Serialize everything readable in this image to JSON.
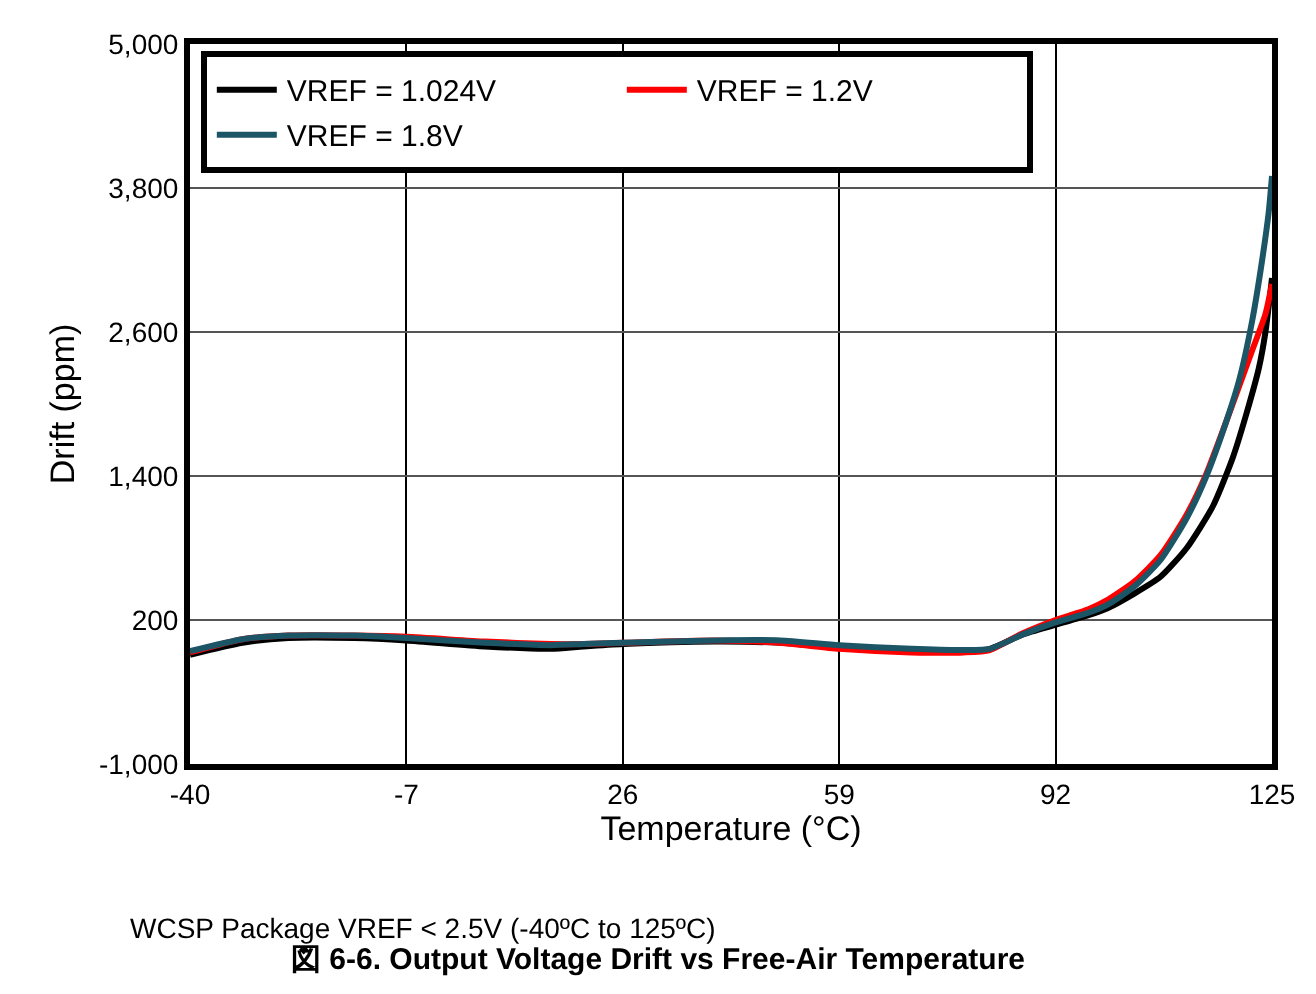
{
  "chart_data": {
    "type": "line",
    "title": "図 6-6. Output Voltage Drift vs Free-Air Temperature",
    "xlabel": "Temperature (°C)",
    "ylabel": "Drift (ppm)",
    "annotations": [
      "WCSP Package VREF < 2.5V (-40ºC to 125ºC)"
    ],
    "xlim": [
      -40,
      125
    ],
    "xticks": [
      -40,
      -7,
      26,
      59,
      92,
      125
    ],
    "ylim": [
      -1000,
      5000
    ],
    "yticks": [
      {
        "value": -1000,
        "label": "-1,000"
      },
      200,
      {
        "value": 1400,
        "label": "1,400"
      },
      {
        "value": 2600,
        "label": "2,600"
      },
      {
        "value": 3800,
        "label": "3,800"
      },
      {
        "value": 5000,
        "label": "5,000"
      }
    ],
    "grid": true,
    "legend": "top left",
    "line_style": "solid",
    "marker": "none",
    "series": [
      {
        "name": "VREF = 1.024V",
        "color": "#000000",
        "x": [
          -40,
          -32,
          -25,
          -15,
          -7,
          5,
          15,
          20,
          26,
          40,
          50,
          59,
          70,
          78,
          82,
          87,
          92,
          97,
          100,
          104,
          108,
          112,
          116,
          119,
          121,
          123,
          124,
          125
        ],
        "values": [
          -90,
          10,
          50,
          50,
          30,
          -20,
          -40,
          -20,
          0,
          20,
          10,
          -30,
          -60,
          -60,
          -40,
          80,
          160,
          240,
          300,
          420,
          560,
          800,
          1150,
          1550,
          1900,
          2300,
          2600,
          3050
        ]
      },
      {
        "name": "VREF = 1.2V",
        "color": "#ff0000",
        "x": [
          -40,
          -32,
          -25,
          -15,
          -7,
          5,
          15,
          20,
          26,
          40,
          50,
          59,
          70,
          78,
          82,
          87,
          92,
          97,
          100,
          104,
          108,
          112,
          115,
          118,
          120,
          122,
          124,
          125
        ],
        "values": [
          -70,
          40,
          70,
          70,
          60,
          20,
          0,
          0,
          10,
          30,
          10,
          -40,
          -70,
          -70,
          -50,
          90,
          200,
          290,
          370,
          520,
          740,
          1080,
          1420,
          1850,
          2150,
          2450,
          2750,
          3000
        ]
      },
      {
        "name": "VREF = 1.8V",
        "color": "#1b5566",
        "x": [
          -40,
          -32,
          -25,
          -15,
          -7,
          5,
          15,
          20,
          26,
          40,
          50,
          59,
          70,
          78,
          82,
          87,
          92,
          97,
          100,
          104,
          108,
          112,
          115,
          118,
          120,
          122,
          123.5,
          124.5,
          125
        ],
        "values": [
          -60,
          40,
          70,
          70,
          50,
          10,
          -10,
          0,
          10,
          30,
          30,
          -10,
          -40,
          -50,
          -40,
          80,
          180,
          260,
          330,
          480,
          700,
          1050,
          1400,
          1850,
          2200,
          2700,
          3200,
          3600,
          3900
        ]
      }
    ]
  }
}
